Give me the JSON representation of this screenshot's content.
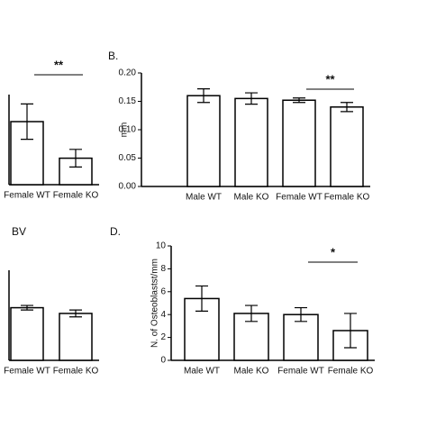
{
  "chart_data": [
    {
      "type": "bar",
      "categories": [
        "Female WT",
        "Female KO"
      ],
      "values": [
        0.5,
        0.21
      ],
      "errors": [
        0.14,
        0.07
      ],
      "ylim": [
        0,
        1
      ],
      "significance_labels": [
        null,
        "**"
      ],
      "color": "#ffffff"
    },
    {
      "type": "bar",
      "label": "B.",
      "ylabel": "mm",
      "categories": [
        "Male WT",
        "Male KO",
        "Female WT",
        "Female KO"
      ],
      "values": [
        0.16,
        0.155,
        0.152,
        0.14
      ],
      "errors": [
        0.012,
        0.01,
        0.004,
        0.008
      ],
      "ylim": [
        0,
        0.2
      ],
      "yticks": [
        {
          "value": 0,
          "label": "0.00"
        },
        {
          "value": 0.05,
          "label": "0.05"
        },
        {
          "value": 0.1,
          "label": "0.10"
        },
        {
          "value": 0.15,
          "label": "0.15"
        },
        {
          "value": 0.2,
          "label": "0.20"
        }
      ],
      "significance_labels": [
        null,
        null,
        null,
        "**"
      ],
      "color": "#ffffff"
    },
    {
      "type": "bar",
      "label": "BV",
      "categories": [
        "Female WT",
        "Female KO"
      ],
      "values": [
        0.46,
        0.41
      ],
      "errors": [
        0.02,
        0.03
      ],
      "ylim": [
        0,
        1
      ],
      "color": "#ffffff"
    },
    {
      "type": "bar",
      "label": "D.",
      "ylabel": "N. of Osteoblastst/mm",
      "categories": [
        "Male WT",
        "Male KO",
        "Female WT",
        "Female KO"
      ],
      "values": [
        5.4,
        4.1,
        4.0,
        2.6
      ],
      "errors": [
        1.1,
        0.7,
        0.6,
        1.5
      ],
      "ylim": [
        0,
        10
      ],
      "yticks": [
        0,
        2,
        4,
        6,
        8,
        10
      ],
      "significance_labels": [
        null,
        null,
        null,
        "*"
      ],
      "color": "#ffffff"
    }
  ]
}
